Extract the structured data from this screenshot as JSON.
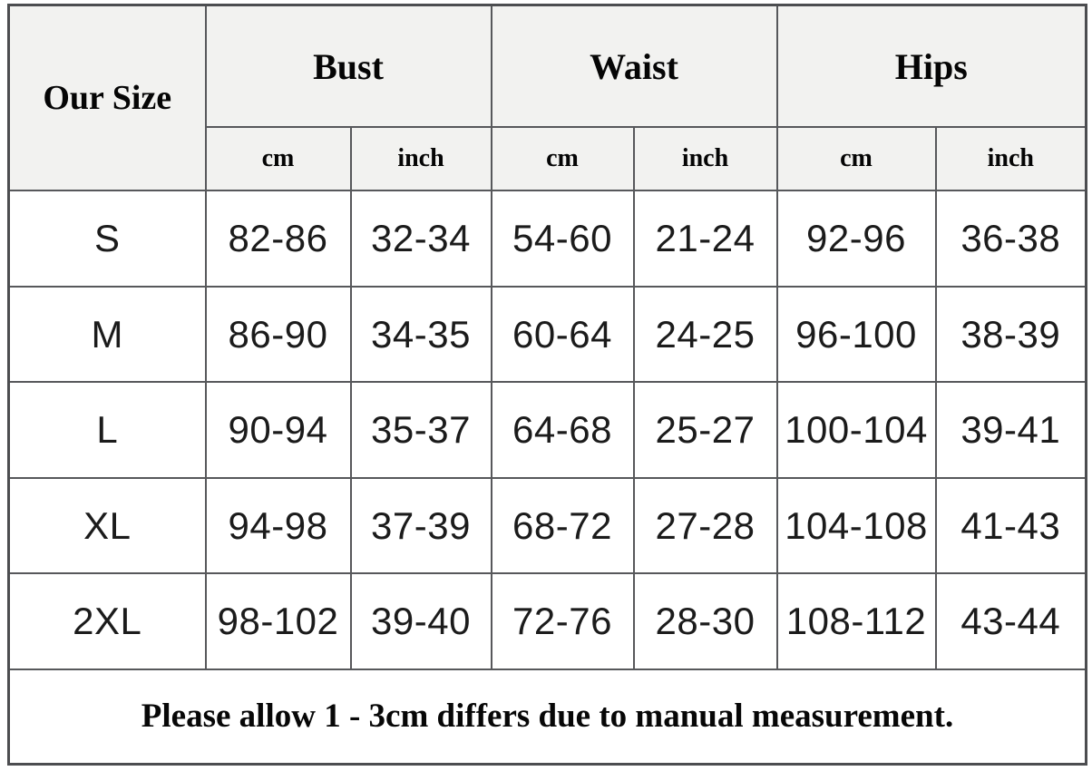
{
  "chart_data": {
    "type": "table",
    "corner_header": "Our Size",
    "column_groups": [
      {
        "label": "Bust"
      },
      {
        "label": "Waist"
      },
      {
        "label": "Hips"
      }
    ],
    "unit_headers": [
      "cm",
      "inch",
      "cm",
      "inch",
      "cm",
      "inch"
    ],
    "rows": [
      {
        "size": "S",
        "values": [
          "82-86",
          "32-34",
          "54-60",
          "21-24",
          "92-96",
          "36-38"
        ]
      },
      {
        "size": "M",
        "values": [
          "86-90",
          "34-35",
          "60-64",
          "24-25",
          "96-100",
          "38-39"
        ]
      },
      {
        "size": "L",
        "values": [
          "90-94",
          "35-37",
          "64-68",
          "25-27",
          "100-104",
          "39-41"
        ]
      },
      {
        "size": "XL",
        "values": [
          "94-98",
          "37-39",
          "68-72",
          "27-28",
          "104-108",
          "41-43"
        ]
      },
      {
        "size": "2XL",
        "values": [
          "98-102",
          "39-40",
          "72-76",
          "28-30",
          "108-112",
          "43-44"
        ]
      }
    ],
    "note": "Please allow 1 - 3cm differs due to manual measurement."
  },
  "colors": {
    "header_background": "#f2f2f0",
    "cell_background": "#ffffff",
    "border": "#57585b",
    "text": "#1b1b1b"
  }
}
